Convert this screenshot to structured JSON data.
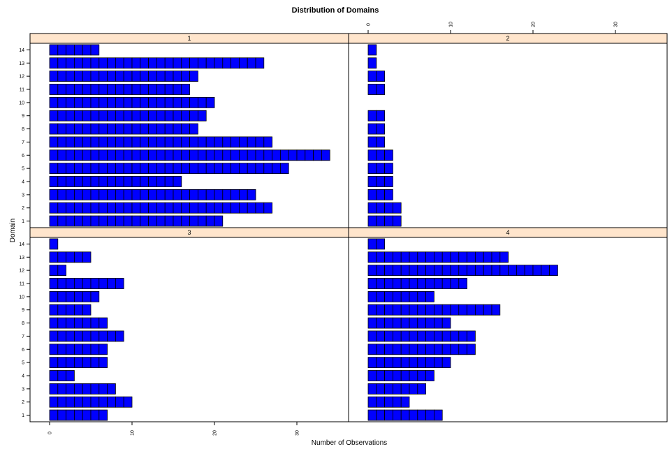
{
  "chart_data": {
    "type": "bar",
    "orientation": "horizontal",
    "title": "Distribution of Domains",
    "xlabel": "Number of Observations",
    "ylabel": "Domain",
    "xlim": [
      0,
      37
    ],
    "x_ticks": [
      0,
      10,
      20,
      30
    ],
    "categories": [
      "1",
      "2",
      "3",
      "4",
      "5",
      "6",
      "7",
      "8",
      "9",
      "10",
      "11",
      "12",
      "13",
      "14"
    ],
    "colors": {
      "bar_fill": "#0000ff",
      "bar_stroke": "#000000",
      "strip_fill": "#ffe5cc",
      "panel_border": "#000000"
    },
    "panels": [
      {
        "label": "1",
        "values": [
          21,
          27,
          25,
          16,
          29,
          34,
          27,
          18,
          19,
          20,
          17,
          18,
          26,
          6
        ]
      },
      {
        "label": "2",
        "values": [
          4,
          4,
          3,
          3,
          3,
          3,
          2,
          2,
          2,
          0,
          2,
          2,
          1,
          1
        ]
      },
      {
        "label": "3",
        "values": [
          7,
          10,
          8,
          3,
          7,
          7,
          9,
          7,
          5,
          6,
          9,
          2,
          5,
          1
        ]
      },
      {
        "label": "4",
        "values": [
          9,
          5,
          7,
          8,
          10,
          13,
          13,
          10,
          16,
          8,
          12,
          23,
          17,
          2
        ]
      }
    ]
  }
}
